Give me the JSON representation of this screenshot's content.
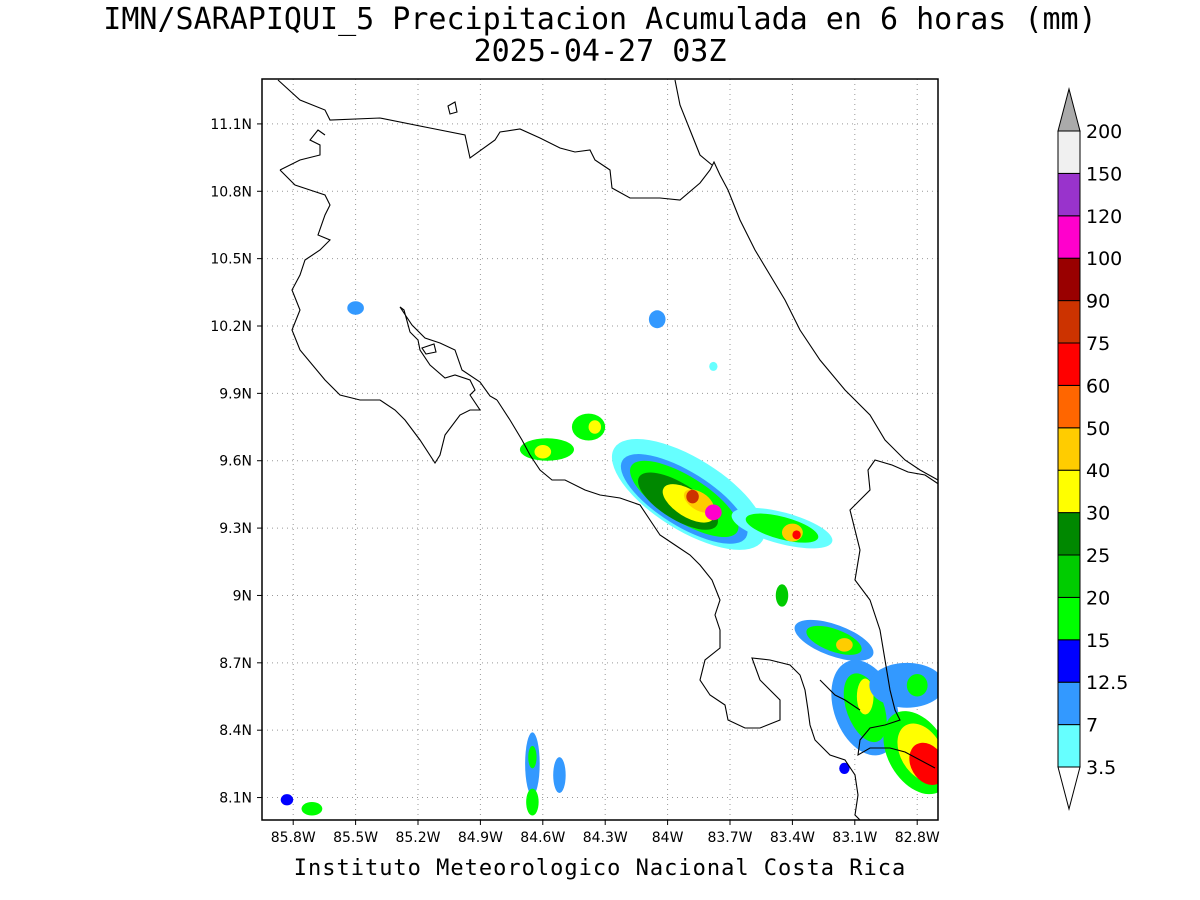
{
  "title": "IMN/SARAPIQUI_5 Precipitacion Acumulada en 6 horas (mm)",
  "subtitle": "2025-04-27 03Z",
  "credit": "Instituto Meteorologico Nacional Costa Rica",
  "map": {
    "lon_range": [
      -85.95,
      -82.7
    ],
    "lat_range": [
      8.0,
      11.3
    ],
    "lat_ticks": [
      {
        "value": 11.1,
        "label": "11.1N"
      },
      {
        "value": 10.8,
        "label": "10.8N"
      },
      {
        "value": 10.5,
        "label": "10.5N"
      },
      {
        "value": 10.2,
        "label": "10.2N"
      },
      {
        "value": 9.9,
        "label": "9.9N"
      },
      {
        "value": 9.6,
        "label": "9.6N"
      },
      {
        "value": 9.3,
        "label": "9.3N"
      },
      {
        "value": 9.0,
        "label": "9N"
      },
      {
        "value": 8.7,
        "label": "8.7N"
      },
      {
        "value": 8.4,
        "label": "8.4N"
      },
      {
        "value": 8.1,
        "label": "8.1N"
      }
    ],
    "lon_ticks": [
      {
        "value": -85.8,
        "label": "85.8W"
      },
      {
        "value": -85.5,
        "label": "85.5W"
      },
      {
        "value": -85.2,
        "label": "85.2W"
      },
      {
        "value": -84.9,
        "label": "84.9W"
      },
      {
        "value": -84.6,
        "label": "84.6W"
      },
      {
        "value": -84.3,
        "label": "84.3W"
      },
      {
        "value": -84.0,
        "label": "84W"
      },
      {
        "value": -83.7,
        "label": "83.7W"
      },
      {
        "value": -83.4,
        "label": "83.4W"
      },
      {
        "value": -83.1,
        "label": "83.1W"
      },
      {
        "value": -82.8,
        "label": "82.8W"
      }
    ],
    "grid": true
  },
  "legend": {
    "levels": [
      {
        "label": "3.5",
        "color": "#66ffff"
      },
      {
        "label": "7",
        "color": "#3399ff"
      },
      {
        "label": "12.5",
        "color": "#0000ff"
      },
      {
        "label": "15",
        "color": "#00ff00"
      },
      {
        "label": "20",
        "color": "#00cc00"
      },
      {
        "label": "25",
        "color": "#008800"
      },
      {
        "label": "30",
        "color": "#ffff00"
      },
      {
        "label": "40",
        "color": "#ffcc00"
      },
      {
        "label": "50",
        "color": "#ff6600"
      },
      {
        "label": "60",
        "color": "#ff0000"
      },
      {
        "label": "75",
        "color": "#cc3300"
      },
      {
        "label": "90",
        "color": "#990000"
      },
      {
        "label": "100",
        "color": "#ff00cc"
      },
      {
        "label": "120",
        "color": "#9933cc"
      },
      {
        "label": "150",
        "color": "#f0f0f0"
      },
      {
        "label": "200",
        "color": "#aaaaaa"
      }
    ]
  },
  "precip_cells": [
    {
      "lon": -85.5,
      "lat": 10.28,
      "rx": 0.04,
      "ry": 0.03,
      "level": 1
    },
    {
      "lon": -84.05,
      "lat": 10.23,
      "rx": 0.04,
      "ry": 0.04,
      "level": 1
    },
    {
      "lon": -83.78,
      "lat": 10.02,
      "rx": 0.02,
      "ry": 0.02,
      "level": 0
    },
    {
      "lon": -84.58,
      "lat": 9.65,
      "rx": 0.13,
      "ry": 0.05,
      "level": 3
    },
    {
      "lon": -84.6,
      "lat": 9.64,
      "rx": 0.04,
      "ry": 0.03,
      "level": 6
    },
    {
      "lon": -84.38,
      "lat": 9.75,
      "rx": 0.08,
      "ry": 0.06,
      "level": 3
    },
    {
      "lon": -84.35,
      "lat": 9.75,
      "rx": 0.03,
      "ry": 0.03,
      "level": 6
    },
    {
      "lon": -83.9,
      "lat": 9.45,
      "rx": 0.42,
      "ry": 0.16,
      "angle": 32,
      "level": 0
    },
    {
      "lon": -83.92,
      "lat": 9.43,
      "rx": 0.35,
      "ry": 0.12,
      "angle": 32,
      "level": 1
    },
    {
      "lon": -83.92,
      "lat": 9.43,
      "rx": 0.3,
      "ry": 0.1,
      "angle": 32,
      "level": 3
    },
    {
      "lon": -83.95,
      "lat": 9.42,
      "rx": 0.22,
      "ry": 0.08,
      "angle": 32,
      "level": 5
    },
    {
      "lon": -83.9,
      "lat": 9.41,
      "rx": 0.14,
      "ry": 0.06,
      "angle": 32,
      "level": 6
    },
    {
      "lon": -83.85,
      "lat": 9.42,
      "rx": 0.08,
      "ry": 0.04,
      "angle": 32,
      "level": 7
    },
    {
      "lon": -83.88,
      "lat": 9.44,
      "rx": 0.03,
      "ry": 0.03,
      "level": 10
    },
    {
      "lon": -83.78,
      "lat": 9.37,
      "rx": 0.04,
      "ry": 0.035,
      "level": 12
    },
    {
      "lon": -83.45,
      "lat": 9.3,
      "rx": 0.25,
      "ry": 0.07,
      "angle": 15,
      "level": 0
    },
    {
      "lon": -83.45,
      "lat": 9.3,
      "rx": 0.18,
      "ry": 0.05,
      "angle": 15,
      "level": 3
    },
    {
      "lon": -83.4,
      "lat": 9.28,
      "rx": 0.05,
      "ry": 0.04,
      "level": 7
    },
    {
      "lon": -83.38,
      "lat": 9.27,
      "rx": 0.02,
      "ry": 0.02,
      "level": 9
    },
    {
      "lon": -83.45,
      "lat": 9.0,
      "rx": 0.03,
      "ry": 0.05,
      "level": 4
    },
    {
      "lon": -83.2,
      "lat": 8.8,
      "rx": 0.2,
      "ry": 0.07,
      "angle": 20,
      "level": 1
    },
    {
      "lon": -83.2,
      "lat": 8.8,
      "rx": 0.14,
      "ry": 0.05,
      "angle": 20,
      "level": 3
    },
    {
      "lon": -83.15,
      "lat": 8.78,
      "rx": 0.04,
      "ry": 0.03,
      "level": 7
    },
    {
      "lon": -83.05,
      "lat": 8.5,
      "rx": 0.15,
      "ry": 0.22,
      "angle": -20,
      "level": 1
    },
    {
      "lon": -83.05,
      "lat": 8.5,
      "rx": 0.09,
      "ry": 0.16,
      "angle": -20,
      "level": 3
    },
    {
      "lon": -83.05,
      "lat": 8.55,
      "rx": 0.04,
      "ry": 0.08,
      "level": 6
    },
    {
      "lon": -82.85,
      "lat": 8.6,
      "rx": 0.18,
      "ry": 0.1,
      "level": 1
    },
    {
      "lon": -82.8,
      "lat": 8.6,
      "rx": 0.05,
      "ry": 0.05,
      "level": 3
    },
    {
      "lon": -82.8,
      "lat": 8.3,
      "rx": 0.14,
      "ry": 0.2,
      "angle": -30,
      "level": 3
    },
    {
      "lon": -82.78,
      "lat": 8.3,
      "rx": 0.1,
      "ry": 0.14,
      "angle": -30,
      "level": 6
    },
    {
      "lon": -82.75,
      "lat": 8.25,
      "rx": 0.08,
      "ry": 0.1,
      "angle": -30,
      "level": 9
    },
    {
      "lon": -84.65,
      "lat": 8.25,
      "rx": 0.035,
      "ry": 0.14,
      "level": 1
    },
    {
      "lon": -84.65,
      "lat": 8.28,
      "rx": 0.02,
      "ry": 0.05,
      "level": 3
    },
    {
      "lon": -84.65,
      "lat": 8.08,
      "rx": 0.03,
      "ry": 0.06,
      "level": 3
    },
    {
      "lon": -84.52,
      "lat": 8.2,
      "rx": 0.03,
      "ry": 0.08,
      "level": 1
    },
    {
      "lon": -85.83,
      "lat": 8.09,
      "rx": 0.03,
      "ry": 0.025,
      "level": 2
    },
    {
      "lon": -85.71,
      "lat": 8.05,
      "rx": 0.05,
      "ry": 0.03,
      "level": 3
    },
    {
      "lon": -83.15,
      "lat": 8.23,
      "rx": 0.025,
      "ry": 0.025,
      "level": 2
    }
  ]
}
